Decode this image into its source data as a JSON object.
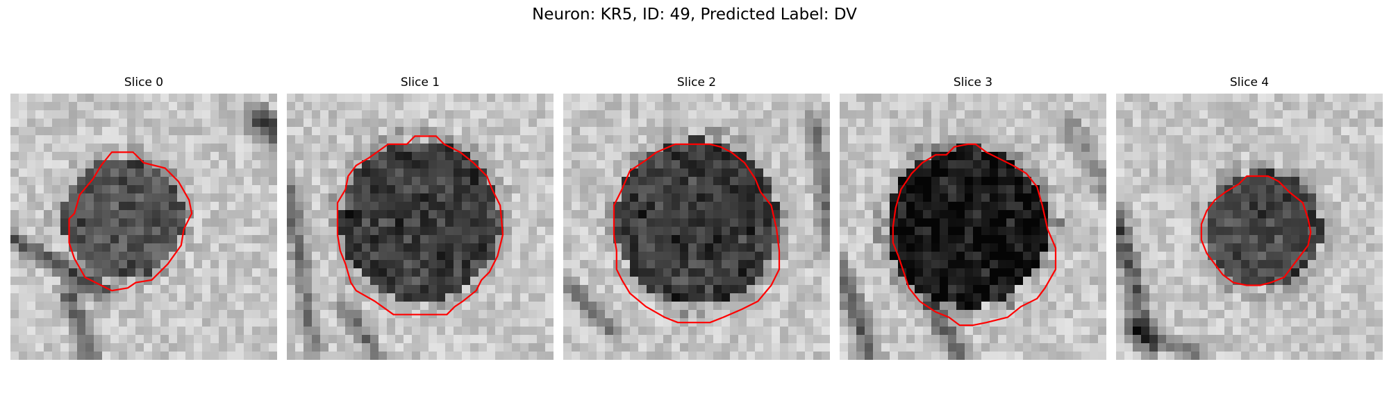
{
  "figure": {
    "title": "Neuron: KR5, ID: 49, Predicted Label: DV"
  },
  "colors": {
    "outline": "#ff0000",
    "background": "#ffffff"
  },
  "slices": [
    {
      "title": "Slice 0",
      "cell_center": [
        0.42,
        0.47
      ],
      "cell_radius": 0.23,
      "cell_darkness": 0.45,
      "dark_streaks": [
        {
          "from": [
            0.02,
            0.55
          ],
          "to": [
            0.35,
            0.75
          ],
          "width": 0.05,
          "strength": 0.55
        },
        {
          "from": [
            0.22,
            0.75
          ],
          "to": [
            0.3,
            1.0
          ],
          "width": 0.06,
          "strength": 0.5
        },
        {
          "from": [
            0.93,
            0.1
          ],
          "to": [
            1.0,
            0.15
          ],
          "width": 0.08,
          "strength": 0.7
        }
      ],
      "outline": [
        [
          0.38,
          0.22
        ],
        [
          0.46,
          0.22
        ],
        [
          0.5,
          0.26
        ],
        [
          0.58,
          0.28
        ],
        [
          0.63,
          0.33
        ],
        [
          0.67,
          0.4
        ],
        [
          0.68,
          0.45
        ],
        [
          0.65,
          0.51
        ],
        [
          0.64,
          0.57
        ],
        [
          0.59,
          0.64
        ],
        [
          0.53,
          0.7
        ],
        [
          0.47,
          0.71
        ],
        [
          0.44,
          0.73
        ],
        [
          0.38,
          0.74
        ],
        [
          0.34,
          0.72
        ],
        [
          0.28,
          0.69
        ],
        [
          0.24,
          0.62
        ],
        [
          0.22,
          0.56
        ],
        [
          0.22,
          0.47
        ],
        [
          0.24,
          0.45
        ],
        [
          0.26,
          0.38
        ],
        [
          0.31,
          0.32
        ],
        [
          0.34,
          0.27
        ]
      ]
    },
    {
      "title": "Slice 1",
      "cell_center": [
        0.5,
        0.48
      ],
      "cell_radius": 0.3,
      "cell_darkness": 0.55,
      "dark_streaks": [
        {
          "from": [
            0.0,
            0.3
          ],
          "to": [
            0.1,
            0.95
          ],
          "width": 0.05,
          "strength": 0.45
        },
        {
          "from": [
            0.22,
            0.8
          ],
          "to": [
            0.35,
            1.0
          ],
          "width": 0.05,
          "strength": 0.4
        }
      ],
      "outline": [
        [
          0.38,
          0.19
        ],
        [
          0.45,
          0.19
        ],
        [
          0.48,
          0.16
        ],
        [
          0.56,
          0.16
        ],
        [
          0.59,
          0.19
        ],
        [
          0.65,
          0.22
        ],
        [
          0.7,
          0.26
        ],
        [
          0.75,
          0.31
        ],
        [
          0.77,
          0.36
        ],
        [
          0.8,
          0.42
        ],
        [
          0.81,
          0.53
        ],
        [
          0.79,
          0.61
        ],
        [
          0.76,
          0.67
        ],
        [
          0.73,
          0.7
        ],
        [
          0.71,
          0.74
        ],
        [
          0.66,
          0.78
        ],
        [
          0.63,
          0.8
        ],
        [
          0.6,
          0.83
        ],
        [
          0.49,
          0.83
        ],
        [
          0.4,
          0.83
        ],
        [
          0.33,
          0.78
        ],
        [
          0.26,
          0.74
        ],
        [
          0.24,
          0.71
        ],
        [
          0.22,
          0.64
        ],
        [
          0.2,
          0.59
        ],
        [
          0.19,
          0.53
        ],
        [
          0.19,
          0.41
        ],
        [
          0.22,
          0.36
        ],
        [
          0.23,
          0.31
        ],
        [
          0.26,
          0.27
        ],
        [
          0.31,
          0.24
        ]
      ]
    },
    {
      "title": "Slice 2",
      "cell_center": [
        0.5,
        0.48
      ],
      "cell_radius": 0.31,
      "cell_darkness": 0.55,
      "dark_streaks": [
        {
          "from": [
            0.0,
            0.7
          ],
          "to": [
            0.2,
            0.9
          ],
          "width": 0.05,
          "strength": 0.4
        },
        {
          "from": [
            0.95,
            0.1
          ],
          "to": [
            1.0,
            0.6
          ],
          "width": 0.06,
          "strength": 0.35
        }
      ],
      "outline": [
        [
          0.42,
          0.19
        ],
        [
          0.45,
          0.19
        ],
        [
          0.48,
          0.19
        ],
        [
          0.55,
          0.19
        ],
        [
          0.59,
          0.2
        ],
        [
          0.63,
          0.22
        ],
        [
          0.68,
          0.26
        ],
        [
          0.72,
          0.32
        ],
        [
          0.74,
          0.37
        ],
        [
          0.78,
          0.42
        ],
        [
          0.8,
          0.51
        ],
        [
          0.81,
          0.59
        ],
        [
          0.81,
          0.66
        ],
        [
          0.78,
          0.72
        ],
        [
          0.73,
          0.78
        ],
        [
          0.67,
          0.81
        ],
        [
          0.6,
          0.84
        ],
        [
          0.55,
          0.86
        ],
        [
          0.48,
          0.86
        ],
        [
          0.43,
          0.86
        ],
        [
          0.38,
          0.84
        ],
        [
          0.31,
          0.8
        ],
        [
          0.25,
          0.75
        ],
        [
          0.22,
          0.7
        ],
        [
          0.2,
          0.66
        ],
        [
          0.2,
          0.59
        ],
        [
          0.19,
          0.53
        ],
        [
          0.19,
          0.42
        ],
        [
          0.22,
          0.36
        ],
        [
          0.25,
          0.29
        ],
        [
          0.31,
          0.25
        ],
        [
          0.35,
          0.22
        ]
      ]
    },
    {
      "title": "Slice 3",
      "cell_center": [
        0.48,
        0.5
      ],
      "cell_radius": 0.3,
      "cell_darkness": 0.7,
      "dark_streaks": [
        {
          "from": [
            0.0,
            0.65
          ],
          "to": [
            0.12,
            1.0
          ],
          "width": 0.06,
          "strength": 0.5
        },
        {
          "from": [
            0.35,
            0.8
          ],
          "to": [
            0.45,
            1.0
          ],
          "width": 0.06,
          "strength": 0.5
        },
        {
          "from": [
            0.85,
            0.1
          ],
          "to": [
            1.0,
            0.35
          ],
          "width": 0.06,
          "strength": 0.3
        }
      ],
      "outline": [
        [
          0.36,
          0.23
        ],
        [
          0.4,
          0.23
        ],
        [
          0.43,
          0.2
        ],
        [
          0.48,
          0.19
        ],
        [
          0.51,
          0.19
        ],
        [
          0.55,
          0.22
        ],
        [
          0.59,
          0.24
        ],
        [
          0.65,
          0.27
        ],
        [
          0.7,
          0.3
        ],
        [
          0.74,
          0.35
        ],
        [
          0.76,
          0.42
        ],
        [
          0.78,
          0.51
        ],
        [
          0.81,
          0.58
        ],
        [
          0.81,
          0.66
        ],
        [
          0.77,
          0.73
        ],
        [
          0.74,
          0.77
        ],
        [
          0.68,
          0.8
        ],
        [
          0.63,
          0.84
        ],
        [
          0.55,
          0.86
        ],
        [
          0.5,
          0.87
        ],
        [
          0.45,
          0.87
        ],
        [
          0.41,
          0.84
        ],
        [
          0.36,
          0.82
        ],
        [
          0.3,
          0.78
        ],
        [
          0.26,
          0.73
        ],
        [
          0.24,
          0.67
        ],
        [
          0.22,
          0.61
        ],
        [
          0.2,
          0.56
        ],
        [
          0.2,
          0.5
        ],
        [
          0.21,
          0.43
        ],
        [
          0.23,
          0.36
        ],
        [
          0.27,
          0.3
        ],
        [
          0.31,
          0.26
        ]
      ]
    },
    {
      "title": "Slice 4",
      "cell_center": [
        0.55,
        0.51
      ],
      "cell_radius": 0.22,
      "cell_darkness": 0.5,
      "dark_streaks": [
        {
          "from": [
            0.0,
            0.45
          ],
          "to": [
            0.12,
            0.95
          ],
          "width": 0.06,
          "strength": 0.55
        },
        {
          "from": [
            0.05,
            0.88
          ],
          "to": [
            0.3,
            0.97
          ],
          "width": 0.05,
          "strength": 0.45
        }
      ],
      "outline": [
        [
          0.46,
          0.34
        ],
        [
          0.49,
          0.31
        ],
        [
          0.52,
          0.31
        ],
        [
          0.57,
          0.31
        ],
        [
          0.61,
          0.33
        ],
        [
          0.65,
          0.37
        ],
        [
          0.7,
          0.41
        ],
        [
          0.72,
          0.47
        ],
        [
          0.73,
          0.52
        ],
        [
          0.72,
          0.57
        ],
        [
          0.69,
          0.61
        ],
        [
          0.66,
          0.65
        ],
        [
          0.63,
          0.69
        ],
        [
          0.58,
          0.71
        ],
        [
          0.54,
          0.72
        ],
        [
          0.49,
          0.72
        ],
        [
          0.44,
          0.71
        ],
        [
          0.4,
          0.68
        ],
        [
          0.37,
          0.64
        ],
        [
          0.34,
          0.6
        ],
        [
          0.32,
          0.55
        ],
        [
          0.32,
          0.49
        ],
        [
          0.34,
          0.44
        ],
        [
          0.37,
          0.4
        ],
        [
          0.41,
          0.37
        ]
      ]
    }
  ]
}
